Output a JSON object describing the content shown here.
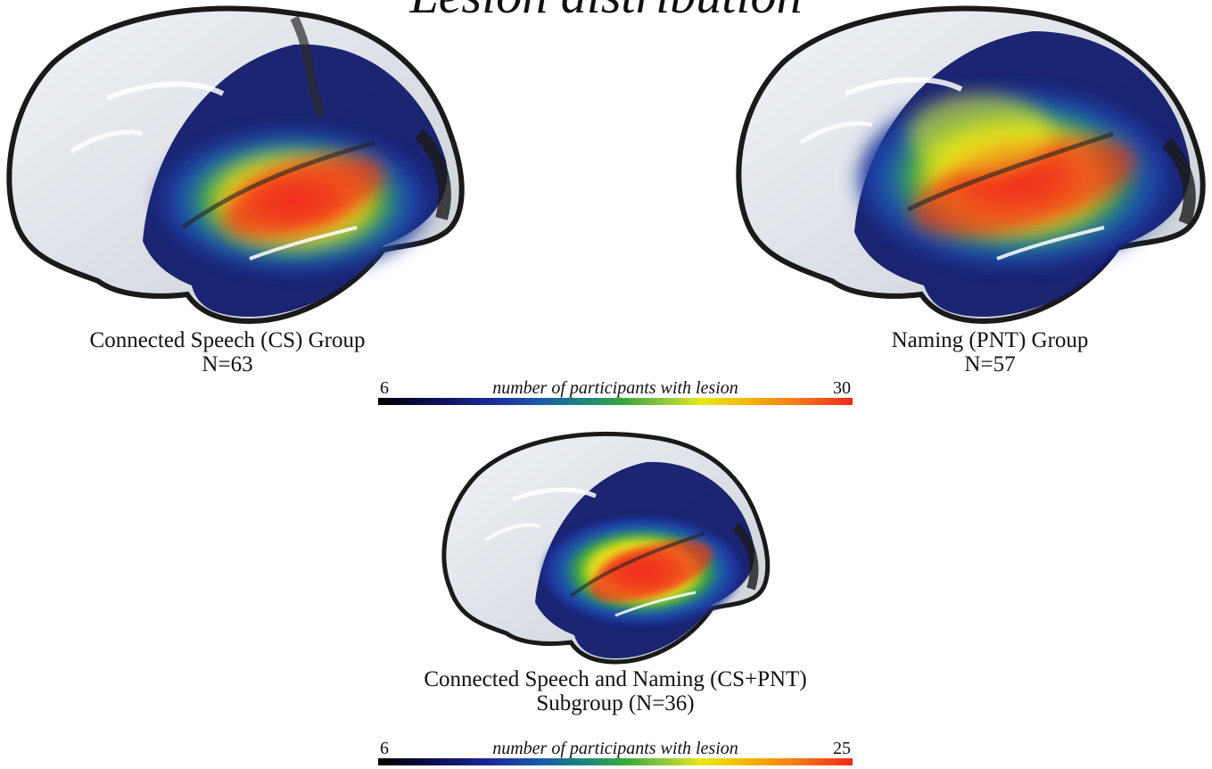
{
  "figure": {
    "title": "Lesion distribution"
  },
  "panels": [
    {
      "name": "cs-group",
      "caption_line1": "Connected Speech (CS) Group",
      "caption_line2": "N=63"
    },
    {
      "name": "pnt-group",
      "caption_line1": "Naming (PNT) Group",
      "caption_line2": "N=57"
    },
    {
      "name": "cs-pnt-subgroup",
      "caption_line1": "Connected Speech and Naming (CS+PNT)",
      "caption_line2": "Subgroup (N=36)"
    }
  ],
  "colorbars": [
    {
      "min_label": "6",
      "max_label": "30",
      "label": "number of participants with lesion",
      "min": 6,
      "max": 30
    },
    {
      "min_label": "6",
      "max_label": "25",
      "label": "number of participants with lesion",
      "min": 6,
      "max": 25
    }
  ],
  "colors": {
    "cortex": "#e4e8ee",
    "cortex_dark": "#3a3a3a",
    "low": "#1c2a9a",
    "mid": "#3aa83a",
    "high_yellow": "#e8e81a",
    "high": "#f02a1a"
  }
}
